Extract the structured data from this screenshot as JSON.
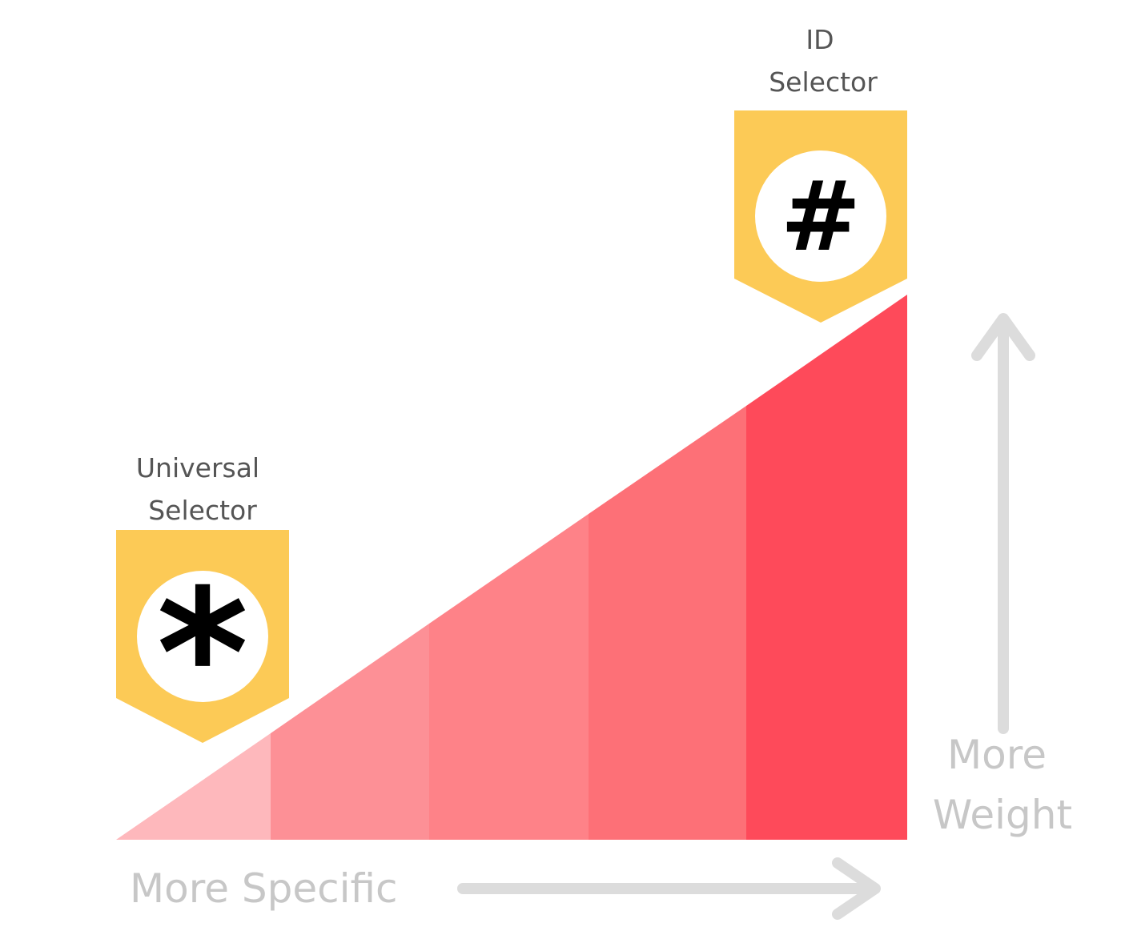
{
  "colors": {
    "badge_fill": "#fcca56",
    "circle_fill": "#ffffff",
    "glyph_color": "#000000",
    "label_color": "#555555",
    "axis_color": "#dcdcdc",
    "axis_label_color": "#c7c7c7",
    "segment_colors": [
      "#feb8bc",
      "#fd9096",
      "#fe8288",
      "#fd7077",
      "#fe4a5a"
    ]
  },
  "badges": {
    "universal": {
      "line1": "Universal",
      "line2": "Selector",
      "glyph": "*",
      "icon": "asterisk-icon"
    },
    "id": {
      "line1": "ID",
      "line2": "Selector",
      "glyph": "#",
      "icon": "hash-icon"
    }
  },
  "axes": {
    "x_label": "More Specific",
    "y_label_line1": "More",
    "y_label_line2": "Weight"
  }
}
